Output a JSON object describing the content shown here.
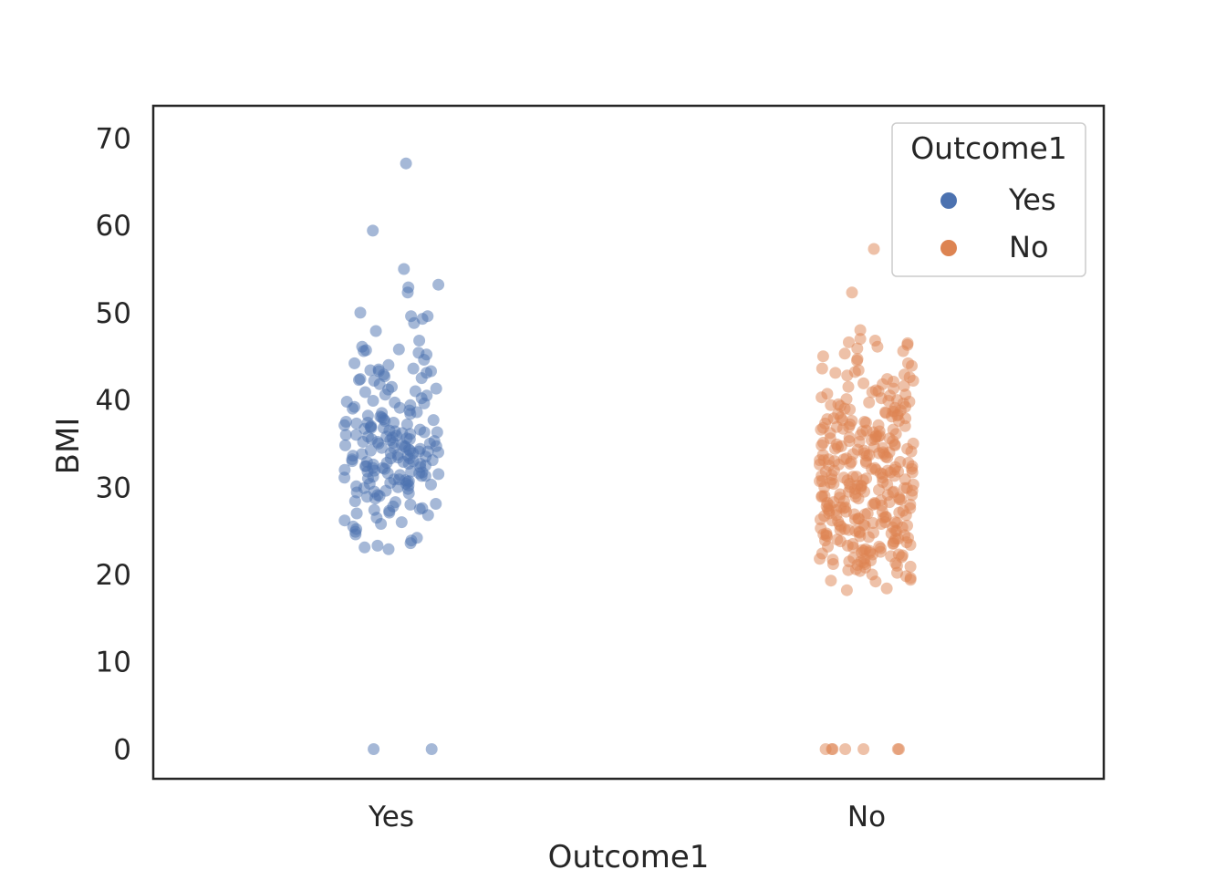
{
  "chart_data": {
    "type": "scatter",
    "subtype": "strip",
    "xlabel": "Outcome1",
    "ylabel": "BMI",
    "categories": [
      "Yes",
      "No"
    ],
    "yticks": [
      0,
      10,
      20,
      30,
      40,
      50,
      60,
      70
    ],
    "ylim": [
      -3.4,
      73.7
    ],
    "grid": false,
    "legend": {
      "title": "Outcome1",
      "placement": "top-right",
      "entries": [
        {
          "label": "Yes",
          "color": "#4c72b0"
        },
        {
          "label": "No",
          "color": "#dd8452"
        }
      ]
    },
    "series": [
      {
        "category": "Yes",
        "color": "#4c72b0",
        "values": [
          67.1,
          59.4,
          55.0,
          53.2,
          52.9,
          52.3,
          50.0,
          49.6,
          49.6,
          49.3,
          48.8,
          47.9,
          46.8,
          46.1,
          45.8,
          45.7,
          45.6,
          45.4,
          45.2,
          44.6,
          44.2,
          44.0,
          43.6,
          43.5,
          43.4,
          43.3,
          43.3,
          43.1,
          42.9,
          42.7,
          42.5,
          42.4,
          42.3,
          42.2,
          41.8,
          41.5,
          41.3,
          41.2,
          41.0,
          40.9,
          40.6,
          40.5,
          40.2,
          39.9,
          39.7,
          39.6,
          39.4,
          39.2,
          39.1,
          39.0,
          38.8,
          38.5,
          38.4,
          38.2,
          38.1,
          38.0,
          37.8,
          37.7,
          37.6,
          37.5,
          37.4,
          37.3,
          37.2,
          37.1,
          37.0,
          36.9,
          36.8,
          36.7,
          36.6,
          36.5,
          36.4,
          36.3,
          36.2,
          36.1,
          36.0,
          35.9,
          35.8,
          35.7,
          35.6,
          35.5,
          35.4,
          35.3,
          35.2,
          35.1,
          35.0,
          34.9,
          34.8,
          34.7,
          34.6,
          34.5,
          34.4,
          34.3,
          34.2,
          34.1,
          34.0,
          33.9,
          33.8,
          33.7,
          33.6,
          33.5,
          33.4,
          33.3,
          33.2,
          33.1,
          33.0,
          32.9,
          32.8,
          32.7,
          32.6,
          32.5,
          32.4,
          32.3,
          32.2,
          32.1,
          32.0,
          31.9,
          31.8,
          31.7,
          31.6,
          31.5,
          31.4,
          31.3,
          31.2,
          31.1,
          31.0,
          30.9,
          30.8,
          30.7,
          30.6,
          30.5,
          30.4,
          30.3,
          30.2,
          30.1,
          30.0,
          29.9,
          29.8,
          29.6,
          29.5,
          29.3,
          29.1,
          29.0,
          28.9,
          28.7,
          28.4,
          28.3,
          28.1,
          28.0,
          27.8,
          27.6,
          27.5,
          27.4,
          27.3,
          27.1,
          27.0,
          26.8,
          26.5,
          26.2,
          26.0,
          25.8,
          25.5,
          25.2,
          24.9,
          24.6,
          24.2,
          23.9,
          23.6,
          23.3,
          23.1,
          22.9,
          0.0,
          0.0,
          33.6,
          34.1,
          35.2,
          36.3,
          32.4,
          31.8,
          30.9,
          34.7,
          35.8,
          33.0,
          32.2,
          31.3,
          36.8,
          37.4,
          33.9,
          34.5,
          35.5,
          32.7,
          30.4,
          29.4,
          38.6,
          39.8,
          36.0,
          33.3,
          31.6,
          35.0,
          34.2,
          32.9
        ]
      },
      {
        "category": "No",
        "color": "#dd8452",
        "values": [
          57.3,
          52.3,
          48.0,
          47.0,
          46.8,
          46.6,
          46.5,
          46.3,
          46.1,
          45.9,
          45.6,
          45.3,
          45.0,
          44.7,
          44.5,
          44.2,
          43.9,
          43.6,
          43.4,
          43.2,
          43.1,
          42.9,
          42.8,
          42.6,
          42.4,
          42.2,
          42.1,
          41.9,
          41.8,
          41.6,
          41.5,
          41.3,
          41.1,
          41.0,
          40.9,
          40.7,
          40.6,
          40.5,
          40.3,
          40.2,
          40.1,
          40.0,
          39.9,
          39.8,
          39.7,
          39.6,
          39.5,
          39.4,
          39.3,
          39.2,
          39.1,
          39.0,
          38.9,
          38.8,
          38.7,
          38.6,
          38.5,
          38.4,
          38.3,
          38.2,
          38.1,
          38.0,
          37.9,
          37.8,
          37.7,
          37.6,
          37.5,
          37.4,
          37.3,
          37.2,
          37.1,
          37.0,
          36.9,
          36.8,
          36.7,
          36.6,
          36.5,
          36.4,
          36.3,
          36.2,
          36.1,
          36.0,
          35.9,
          35.8,
          35.7,
          35.6,
          35.5,
          35.4,
          35.3,
          35.2,
          35.1,
          35.0,
          34.9,
          34.8,
          34.7,
          34.6,
          34.5,
          34.4,
          34.3,
          34.2,
          34.1,
          34.0,
          33.9,
          33.8,
          33.7,
          33.6,
          33.5,
          33.4,
          33.3,
          33.2,
          33.1,
          33.0,
          32.9,
          32.8,
          32.7,
          32.6,
          32.5,
          32.4,
          32.3,
          32.2,
          32.1,
          32.0,
          31.9,
          31.8,
          31.7,
          31.6,
          31.5,
          31.4,
          31.3,
          31.2,
          31.1,
          31.0,
          30.9,
          30.8,
          30.7,
          30.6,
          30.5,
          30.4,
          30.3,
          30.2,
          30.1,
          30.0,
          29.9,
          29.8,
          29.7,
          29.6,
          29.5,
          29.4,
          29.3,
          29.2,
          29.1,
          29.0,
          28.9,
          28.8,
          28.7,
          28.6,
          28.5,
          28.4,
          28.3,
          28.2,
          28.1,
          28.0,
          27.9,
          27.8,
          27.7,
          27.6,
          27.5,
          27.4,
          27.3,
          27.2,
          27.1,
          27.0,
          26.9,
          26.8,
          26.7,
          26.6,
          26.5,
          26.4,
          26.3,
          26.2,
          26.1,
          26.0,
          25.9,
          25.8,
          25.7,
          25.6,
          25.5,
          25.4,
          25.3,
          25.2,
          25.1,
          25.0,
          24.9,
          24.8,
          24.7,
          24.6,
          24.5,
          24.4,
          24.3,
          24.2,
          24.1,
          24.0,
          23.9,
          23.8,
          23.7,
          23.6,
          23.5,
          23.4,
          23.3,
          23.2,
          23.1,
          23.0,
          22.9,
          22.8,
          22.7,
          22.6,
          22.5,
          22.4,
          22.3,
          22.2,
          22.1,
          22.0,
          21.9,
          21.8,
          21.7,
          21.6,
          21.5,
          21.4,
          21.3,
          21.2,
          21.1,
          21.0,
          20.9,
          20.8,
          20.6,
          20.4,
          20.2,
          20.0,
          19.8,
          19.6,
          19.4,
          19.3,
          19.2,
          18.4,
          18.2,
          0.0,
          0.0,
          0.0,
          0.0,
          0.0,
          0.0,
          0.0,
          34.4,
          33.1,
          31.7,
          30.8,
          29.9,
          28.8,
          27.6,
          26.3,
          25.1,
          24.4,
          32.6,
          31.2,
          30.3,
          29.5,
          28.3,
          27.2,
          26.6,
          25.6,
          24.7,
          35.3,
          34.0,
          33.2,
          32.0,
          31.1,
          30.2,
          29.0,
          28.0,
          27.0,
          26.0,
          25.0,
          36.4,
          35.6,
          34.6,
          33.7,
          32.8,
          31.9,
          30.7,
          29.8,
          28.9,
          27.9,
          26.9,
          25.7,
          24.8,
          23.8,
          22.7,
          21.8,
          37.6,
          36.6,
          35.8,
          34.8,
          33.8,
          32.9,
          31.8,
          30.9,
          30.0,
          29.1,
          28.2,
          27.3,
          26.4,
          25.4,
          24.5,
          23.5,
          22.5,
          21.5,
          20.5,
          38.7,
          37.9,
          36.9,
          35.9,
          34.9,
          33.9,
          33.0,
          32.1,
          31.3,
          30.4,
          29.5,
          28.6,
          27.7,
          26.8,
          25.9,
          25.0,
          24.1,
          23.2,
          22.3,
          21.2
        ]
      }
    ]
  }
}
